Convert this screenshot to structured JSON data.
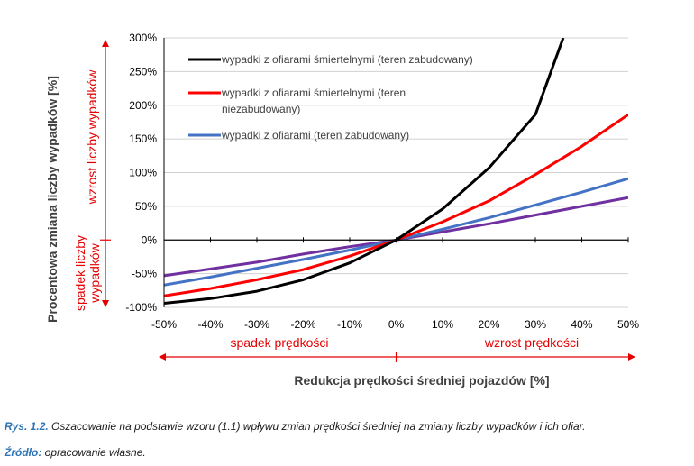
{
  "chart_data": {
    "type": "line",
    "ylabel": "Procentowa zmiana liczby wypadków [%]",
    "xlabel": "Redukcja prędkości średniej pojazdów [%]",
    "x": [
      -50,
      -40,
      -30,
      -20,
      -10,
      0,
      10,
      20,
      30,
      40,
      50
    ],
    "x_tick_labels": [
      "-50%",
      "-40%",
      "-30%",
      "-20%",
      "-10%",
      "0%",
      "10%",
      "20%",
      "30%",
      "40%",
      "50%"
    ],
    "y_ticks": [
      -100,
      -50,
      0,
      50,
      100,
      150,
      200,
      250,
      300
    ],
    "y_tick_labels": [
      "-100%",
      "-50%",
      "0%",
      "50%",
      "100%",
      "150%",
      "200%",
      "250%",
      "300%"
    ],
    "xlim": [
      -50,
      50
    ],
    "ylim": [
      -100,
      300
    ],
    "grid": "horizontal",
    "legend_position": "top-left",
    "series": [
      {
        "name": "wypadki z ofiarami śmiertelnymi (teren zabudowany)",
        "color": "#000000",
        "x": [
          -50,
          -40,
          -30,
          -20,
          -10,
          0,
          10,
          20,
          30,
          36
        ],
        "values": [
          -94,
          -87,
          -76,
          -59,
          -34,
          0,
          46,
          107,
          186,
          300
        ]
      },
      {
        "name": "wypadki z ofiarami śmiertelnymi (teren niezabudowany)",
        "color": "#ff0000",
        "x": [
          -50,
          -40,
          -30,
          -20,
          -10,
          0,
          10,
          20,
          30,
          40,
          50
        ],
        "values": [
          -83,
          -72,
          -59,
          -44,
          -24,
          0,
          27,
          58,
          97,
          139,
          186
        ]
      },
      {
        "name": "wypadki z ofiarami (teren zabudowany)",
        "color": "#4472c4",
        "x": [
          -50,
          -40,
          -30,
          -20,
          -10,
          0,
          10,
          20,
          30,
          40,
          50
        ],
        "values": [
          -67,
          -55,
          -42,
          -29,
          -15,
          0,
          16,
          33,
          52,
          71,
          91
        ]
      },
      {
        "name": "",
        "color": "#7030a0",
        "x": [
          -50,
          -40,
          -30,
          -20,
          -10,
          0,
          10,
          20,
          30,
          40,
          50
        ],
        "values": [
          -53,
          -43,
          -33,
          -21,
          -10,
          0,
          12,
          24,
          37,
          50,
          63
        ]
      }
    ],
    "legend_lines": [
      [
        "wypadki z ofiarami śmiertelnymi (teren zabudowany)"
      ],
      [
        "wypadki z ofiarami śmiertelnymi (teren",
        "niezabudowany)"
      ],
      [
        "wypadki z ofiarami (teren zabudowany)"
      ]
    ],
    "annotations": {
      "increase_accidents": "wzrost liczby wypadków",
      "decrease_accidents_line1": "spadek liczby",
      "decrease_accidents_line2": "wypadków",
      "decrease_speed": "spadek prędkości",
      "increase_speed": "wzrost prędkości"
    }
  },
  "caption": {
    "fig_label": "Rys. 1.2.",
    "fig_text": " Oszacowanie na podstawie wzoru (1.1) wpływu zmian prędkości średniej na zmiany liczby wypadków i ich ofiar.",
    "source_label": "Źródło:",
    "source_text": " opracowanie własne."
  }
}
